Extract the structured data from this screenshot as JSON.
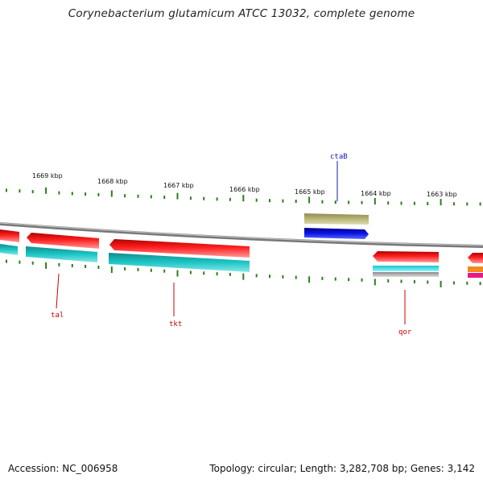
{
  "title": "Corynebacterium glutamicum ATCC 13032, complete genome",
  "footer": {
    "accession": "Accession: NC_006958",
    "summary": "Topology: circular; Length: 3,282,708 bp; Genes: 3,142"
  },
  "scale": {
    "ticks": [
      {
        "label": "1669 kbp"
      },
      {
        "label": "1668 kbp"
      },
      {
        "label": "1667 kbp"
      },
      {
        "label": "1666 kbp"
      },
      {
        "label": "1665 kbp"
      },
      {
        "label": "1664 kbp"
      },
      {
        "label": "1663 kbp"
      }
    ],
    "tick_color": "#2a7f1a"
  },
  "backbone_color": "#8a8a8a",
  "labels": {
    "tal": "tal",
    "tkt": "tkt",
    "ctaB": "ctaB",
    "qor": "qor"
  },
  "colors": {
    "tal": "#cc0000",
    "tkt": "#cc0000",
    "qor": "#cc0000",
    "ctaB": "#1515c0",
    "red_cds": "#ee1111",
    "cyan_track": "#1cc6c6",
    "light_cyan": "#33e6ee",
    "gray_track": "#b0b0b0",
    "olive_track": "#bab67a",
    "blue_cds": "#0a14e6",
    "orange_track": "#f08a1a",
    "pink_track": "#e8188a"
  }
}
